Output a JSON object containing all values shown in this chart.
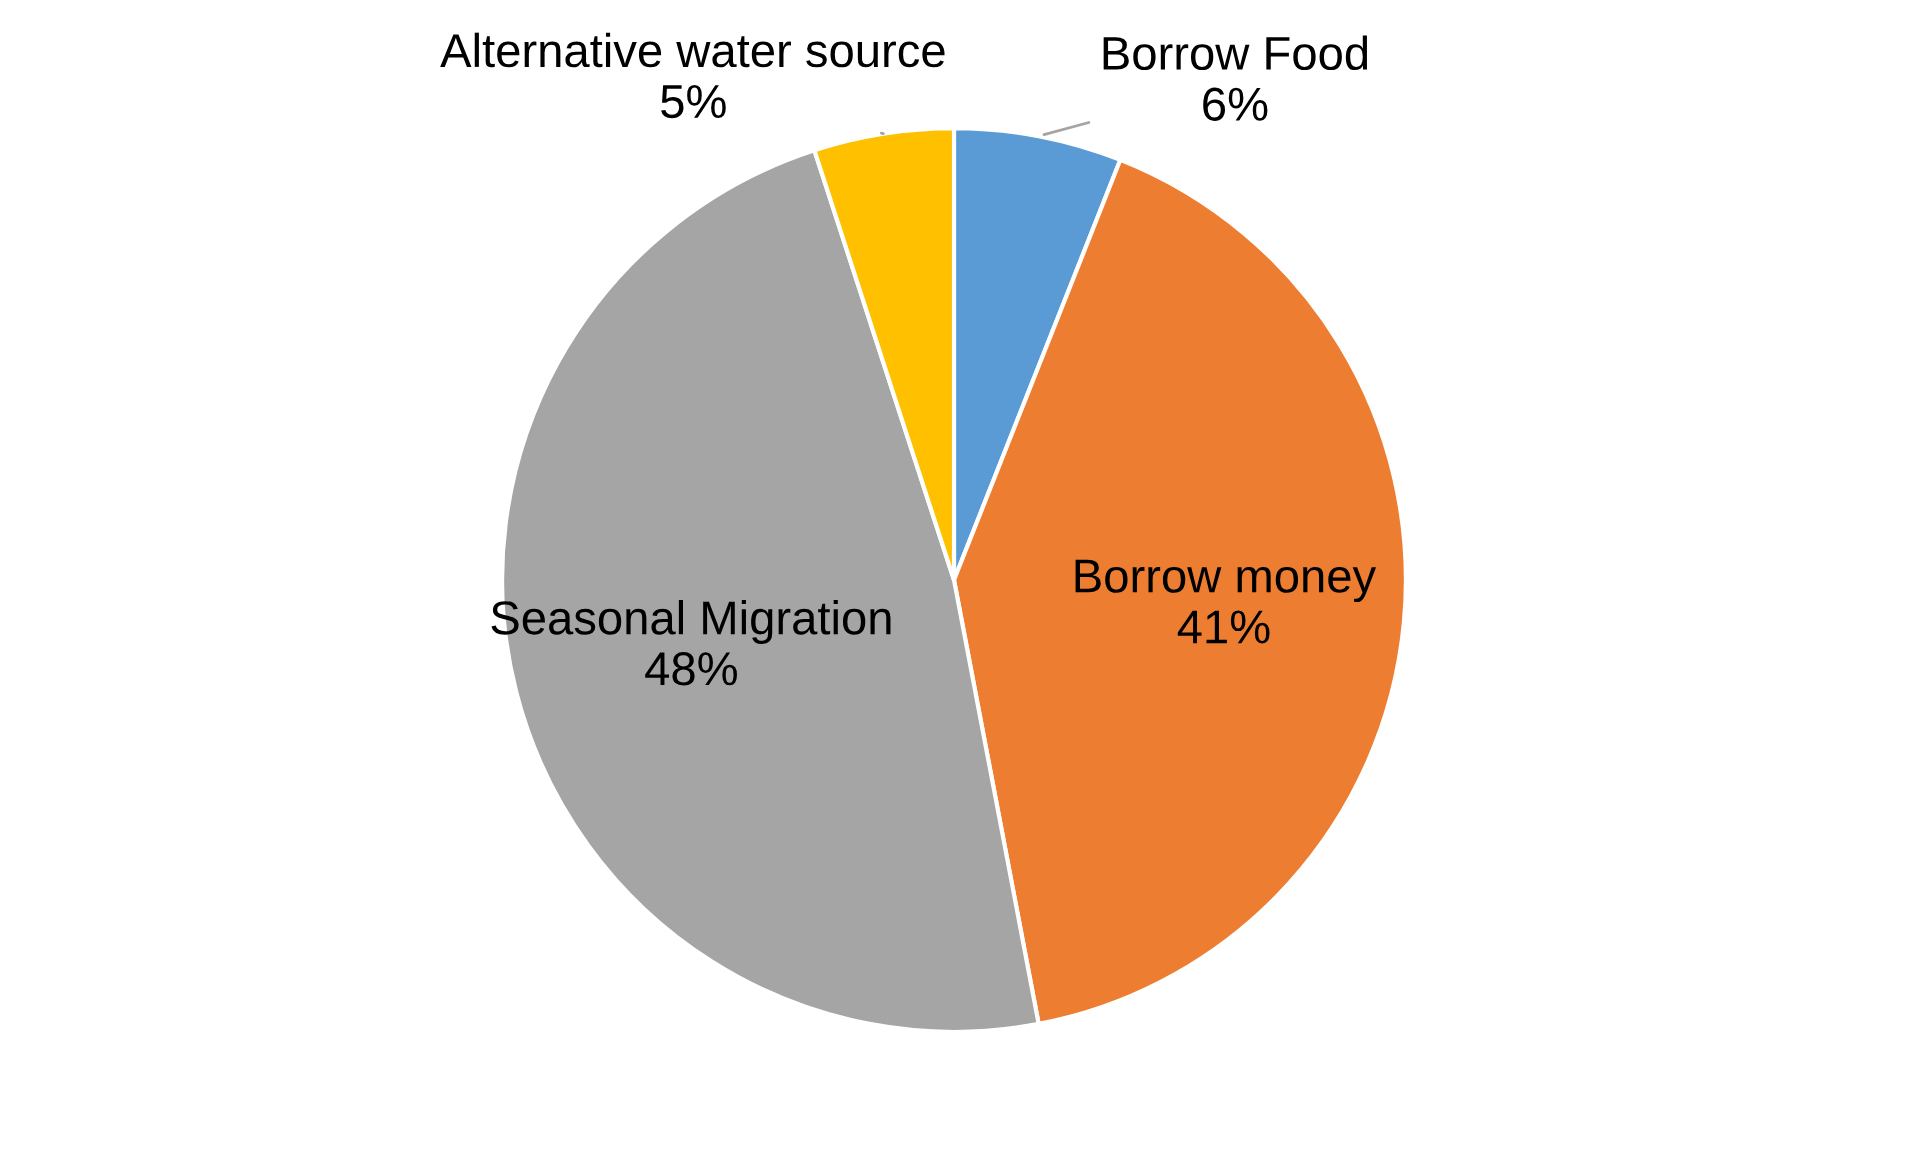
{
  "chart_data": {
    "type": "pie",
    "categories": [
      "Borrow Food",
      "Borrow money",
      "Seasonal Migration",
      "Alternative water source"
    ],
    "values": [
      6,
      41,
      48,
      5
    ],
    "value_labels": [
      "6%",
      "41%",
      "48%",
      "5%"
    ],
    "colors": [
      "#5b9bd5",
      "#ed7d31",
      "#a5a5a5",
      "#ffc000"
    ],
    "legend": false
  }
}
